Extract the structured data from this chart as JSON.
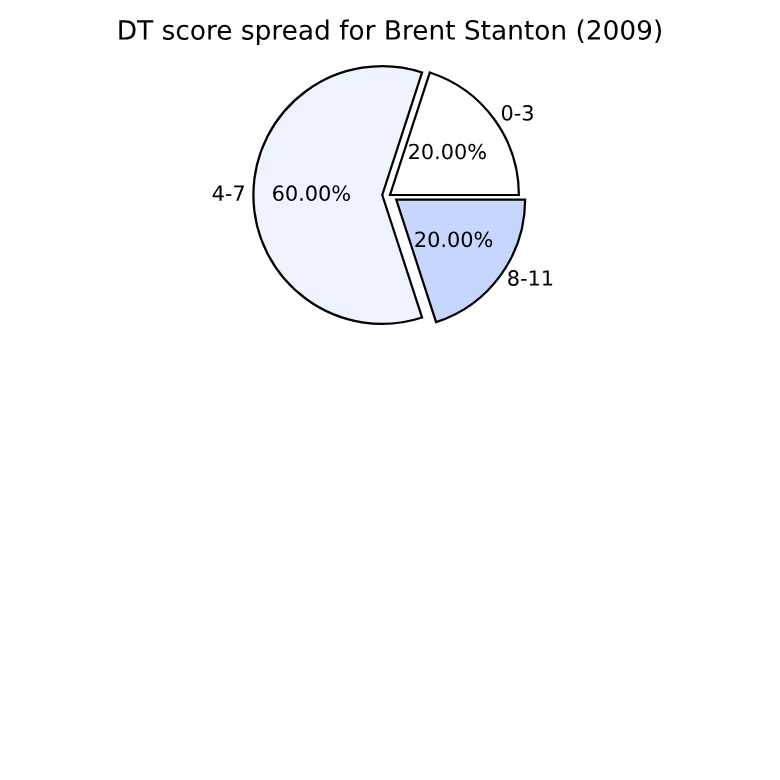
{
  "chart_data": {
    "type": "pie",
    "title": "DT score spread for Brent Stanton (2009)",
    "categories": [
      "0-3",
      "4-7",
      "8-11"
    ],
    "values": [
      20,
      60,
      20
    ],
    "value_labels": [
      "20.00%",
      "60.00%",
      "20.00%"
    ],
    "colors": [
      "#ffffff",
      "#eef3ff",
      "#c6d6ff"
    ],
    "legend": false
  }
}
